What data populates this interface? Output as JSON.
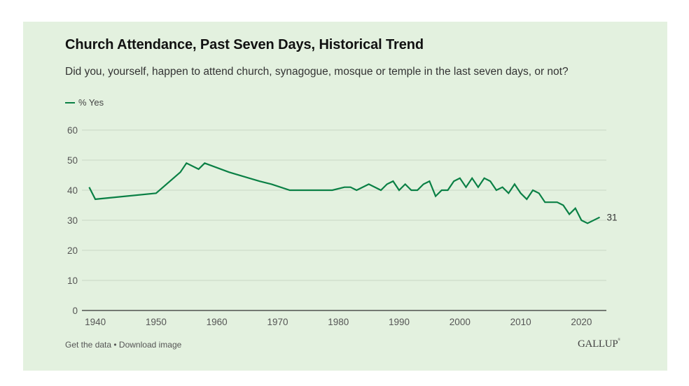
{
  "header": {
    "title": "Church Attendance, Past Seven Days, Historical Trend",
    "subtitle": "Did you, yourself, happen to attend church, synagogue, mosque or temple in the last seven days, or not?"
  },
  "footer": {
    "get_data": "Get the data",
    "separator": " • ",
    "download_image": "Download image",
    "brand": "GALLUP",
    "brand_mark": "®"
  },
  "colors": {
    "background": "#e3f1df",
    "line": "#0a8045",
    "grid": "#c9d8c5",
    "axis": "#333333"
  },
  "chart_data": {
    "type": "line",
    "title": "Church Attendance, Past Seven Days, Historical Trend",
    "subtitle": "Did you, yourself, happen to attend church, synagogue, mosque or temple in the last seven days, or not?",
    "xlabel": "",
    "ylabel": "",
    "xlim": [
      1937.8,
      2024.1
    ],
    "ylim": [
      0,
      60
    ],
    "x_ticks": [
      1940,
      1950,
      1960,
      1970,
      1980,
      1990,
      2000,
      2010,
      2020
    ],
    "y_ticks": [
      0,
      10,
      20,
      30,
      40,
      50,
      60
    ],
    "grid": true,
    "legend": {
      "position": "top-left",
      "entries": [
        "% Yes"
      ]
    },
    "series": [
      {
        "name": "% Yes",
        "end_label": "31",
        "x": [
          1939,
          1940,
          1950,
          1954,
          1955,
          1957,
          1958,
          1962,
          1967,
          1969,
          1972,
          1976,
          1979,
          1981,
          1982,
          1983,
          1985,
          1987,
          1988,
          1989,
          1990,
          1991,
          1992,
          1993,
          1994,
          1995,
          1996,
          1997,
          1998,
          1999,
          2000,
          2001,
          2002,
          2003,
          2004,
          2005,
          2006,
          2007,
          2008,
          2009,
          2010,
          2011,
          2012,
          2013,
          2014,
          2016,
          2017,
          2018,
          2019,
          2020,
          2021,
          2023
        ],
        "values": [
          41,
          37,
          39,
          46,
          49,
          47,
          49,
          46,
          43,
          42,
          40,
          40,
          40,
          41,
          41,
          40,
          42,
          40,
          42,
          43,
          40,
          42,
          40,
          40,
          42,
          43,
          38,
          40,
          40,
          43,
          44,
          41,
          44,
          41,
          44,
          43,
          40,
          41,
          39,
          42,
          39,
          37,
          40,
          39,
          36,
          36,
          35,
          32,
          34,
          30,
          29,
          31
        ]
      }
    ]
  }
}
